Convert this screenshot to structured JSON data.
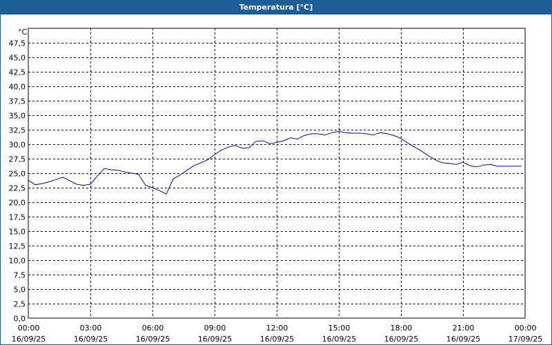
{
  "window": {
    "title": "Temperatura [°C]"
  },
  "colors": {
    "titlebar": "#1e5c96",
    "line": "#0000c8",
    "grid": "#000000"
  },
  "chart_data": {
    "type": "line",
    "title": "Temperatura [°C]",
    "ylabel": "°C",
    "xlabel": "",
    "ylim": [
      0,
      50
    ],
    "xlim": [
      0,
      24
    ],
    "grid": true,
    "y_ticks": [
      "0,0",
      "2,5",
      "5,0",
      "7,5",
      "10,0",
      "12,5",
      "15,0",
      "17,5",
      "20,0",
      "22,5",
      "25,0",
      "27,5",
      "30,0",
      "32,5",
      "35,0",
      "37,5",
      "40,0",
      "42,5",
      "45,0",
      "47,5"
    ],
    "x_ticks": [
      {
        "time": "00:00",
        "date": "16/09/25"
      },
      {
        "time": "03:00",
        "date": "16/09/25"
      },
      {
        "time": "06:00",
        "date": "16/09/25"
      },
      {
        "time": "09:00",
        "date": "16/09/25"
      },
      {
        "time": "12:00",
        "date": "16/09/25"
      },
      {
        "time": "15:00",
        "date": "16/09/25"
      },
      {
        "time": "18:00",
        "date": "16/09/25"
      },
      {
        "time": "21:00",
        "date": "16/09/25"
      },
      {
        "time": "00:00",
        "date": "17/09/25"
      }
    ],
    "series": [
      {
        "x": [
          "00:00",
          "00:20",
          "00:40",
          "01:00",
          "01:20",
          "01:40",
          "02:00",
          "02:20",
          "02:40",
          "03:00",
          "03:20",
          "03:40",
          "04:00",
          "04:20",
          "04:40",
          "05:00",
          "05:20",
          "05:40",
          "06:00",
          "06:20",
          "06:40",
          "07:00",
          "07:20",
          "07:40",
          "08:00",
          "08:20",
          "08:40",
          "09:00",
          "09:20",
          "09:40",
          "10:00",
          "10:20",
          "10:40",
          "11:00",
          "11:20",
          "11:40",
          "12:00",
          "12:20",
          "12:40",
          "13:00",
          "13:20",
          "13:40",
          "14:00",
          "14:20",
          "14:40",
          "15:00",
          "15:20",
          "15:40",
          "16:00",
          "16:20",
          "16:40",
          "17:00",
          "17:20",
          "17:40",
          "18:00",
          "18:20",
          "18:40",
          "19:00",
          "19:20",
          "19:40",
          "20:00",
          "20:20",
          "20:40",
          "21:00",
          "21:20",
          "21:40",
          "22:00",
          "22:20",
          "22:40",
          "23:00",
          "23:20",
          "23:40",
          "23:50"
        ],
        "values": [
          23.8,
          23.0,
          23.2,
          23.5,
          23.9,
          24.3,
          23.7,
          23.1,
          22.9,
          23.1,
          24.5,
          25.8,
          25.6,
          25.5,
          25.2,
          25.0,
          24.8,
          22.9,
          22.5,
          22.0,
          21.4,
          24.0,
          24.7,
          25.5,
          26.3,
          26.8,
          27.3,
          28.2,
          29.0,
          29.5,
          29.8,
          29.3,
          29.4,
          30.5,
          30.6,
          30.1,
          30.3,
          30.6,
          31.1,
          30.9,
          31.5,
          31.8,
          31.8,
          31.6,
          32.0,
          32.2,
          32.0,
          31.9,
          31.9,
          31.8,
          31.6,
          32.0,
          31.8,
          31.5,
          31.0,
          30.2,
          29.5,
          28.8,
          28.0,
          27.3,
          26.8,
          26.7,
          26.5,
          26.9,
          26.3,
          26.1,
          26.4,
          26.5,
          26.2,
          26.2,
          26.2,
          26.2,
          26.2
        ]
      }
    ]
  }
}
